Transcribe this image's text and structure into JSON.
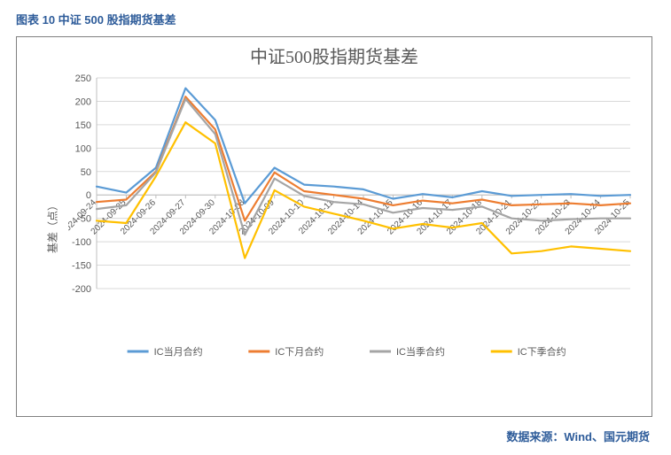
{
  "caption": "图表 10  中证 500 股指期货基差",
  "chart": {
    "type": "line",
    "title": "中证500股指期货基差",
    "title_fontsize": 20,
    "title_color": "#595959",
    "ylabel": "基差（点）",
    "label_fontsize": 12,
    "label_color": "#595959",
    "background_color": "#ffffff",
    "plot_border_color": "#808080",
    "grid_color": "#d9d9d9",
    "axis_line_color": "#bfbfbf",
    "tick_label_color": "#595959",
    "tick_fontsize": 11,
    "ylim": [
      -200,
      250
    ],
    "ytick_step": 50,
    "yticks": [
      -200,
      -150,
      -100,
      -50,
      0,
      50,
      100,
      150,
      200,
      250
    ],
    "line_width": 2.2,
    "marker": "none",
    "categories": [
      "2024-09-24",
      "2024-09-25",
      "2024-09-26",
      "2024-09-27",
      "2024-09-30",
      "2024-10-08",
      "2024-10-09",
      "2024-10-10",
      "2024-10-11",
      "2024-10-14",
      "2024-10-15",
      "2024-10-16",
      "2024-10-17",
      "2024-10-18",
      "2024-10-21",
      "2024-10-22",
      "2024-10-23",
      "2024-10-24",
      "2024-10-25"
    ],
    "series": [
      {
        "name": "IC当月合约",
        "color": "#5b9bd5",
        "values": [
          18,
          5,
          58,
          228,
          160,
          -18,
          58,
          22,
          18,
          12,
          -8,
          2,
          -5,
          8,
          -2,
          0,
          2,
          -2,
          0
        ]
      },
      {
        "name": "IC下月合约",
        "color": "#ed7d31",
        "values": [
          -15,
          -10,
          50,
          210,
          140,
          -55,
          48,
          8,
          0,
          -8,
          -22,
          -12,
          -18,
          -10,
          -22,
          -20,
          -18,
          -22,
          -18
        ]
      },
      {
        "name": "IC当季合约",
        "color": "#a5a5a5",
        "values": [
          -30,
          -22,
          48,
          205,
          130,
          -85,
          35,
          -2,
          -15,
          -20,
          -38,
          -28,
          -32,
          -25,
          -50,
          -55,
          -52,
          -50,
          -50
        ]
      },
      {
        "name": "IC下季合约",
        "color": "#ffc000",
        "values": [
          -55,
          -60,
          40,
          155,
          110,
          -135,
          10,
          -25,
          -40,
          -55,
          -72,
          -62,
          -70,
          -60,
          -125,
          -120,
          -110,
          -115,
          -120
        ]
      }
    ],
    "legend": {
      "position": "bottom",
      "fontsize": 11,
      "swatch_width": 24,
      "swatch_height": 2.5
    }
  },
  "source": "数据来源：Wind、国元期货"
}
